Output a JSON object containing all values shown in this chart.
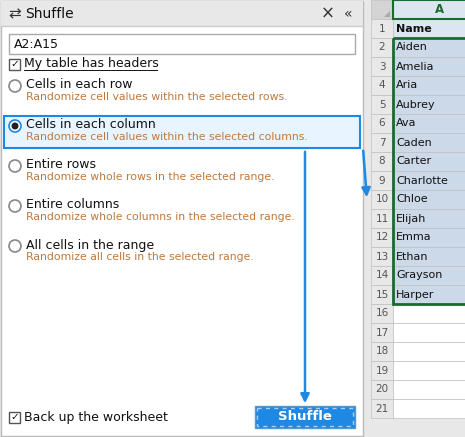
{
  "fig_width": 4.65,
  "fig_height": 4.37,
  "dpi": 100,
  "bg_color": "#e8e8e8",
  "panel_bg": "#ffffff",
  "title": "Shuffle",
  "range_text": "A2:A15",
  "checkbox1_text": "My table has headers",
  "radio_options": [
    {
      "label": "Cells in each row",
      "sublabel": "Randomize cell values within the selected rows.",
      "selected": false
    },
    {
      "label": "Cells in each column",
      "sublabel": "Randomize cell values within the selected columns.",
      "selected": true
    },
    {
      "label": "Entire rows",
      "sublabel": "Randomize whole rows in the selected range.",
      "selected": false
    },
    {
      "label": "Entire columns",
      "sublabel": "Randomize whole columns in the selected range.",
      "selected": false
    },
    {
      "label": "All cells in the range",
      "sublabel": "Randomize all cells in the selected range.",
      "selected": false
    }
  ],
  "checkbox2_text": "Back up the worksheet",
  "shuffle_btn_text": "Shuffle",
  "excel_col_header": "A",
  "excel_rows": [
    {
      "num": 1,
      "name": "Name",
      "header": true
    },
    {
      "num": 2,
      "name": "Aiden",
      "header": false
    },
    {
      "num": 3,
      "name": "Amelia",
      "header": false
    },
    {
      "num": 4,
      "name": "Aria",
      "header": false
    },
    {
      "num": 5,
      "name": "Aubrey",
      "header": false
    },
    {
      "num": 6,
      "name": "Ava",
      "header": false
    },
    {
      "num": 7,
      "name": "Caden",
      "header": false
    },
    {
      "num": 8,
      "name": "Carter",
      "header": false
    },
    {
      "num": 9,
      "name": "Charlotte",
      "header": false
    },
    {
      "num": 10,
      "name": "Chloe",
      "header": false
    },
    {
      "num": 11,
      "name": "Elijah",
      "header": false
    },
    {
      "num": 12,
      "name": "Emma",
      "header": false
    },
    {
      "num": 13,
      "name": "Ethan",
      "header": false
    },
    {
      "num": 14,
      "name": "Grayson",
      "header": false
    },
    {
      "num": 15,
      "name": "Harper",
      "header": false
    },
    {
      "num": 16,
      "name": "",
      "header": false
    },
    {
      "num": 17,
      "name": "",
      "header": false
    },
    {
      "num": 18,
      "name": "",
      "header": false
    },
    {
      "num": 19,
      "name": "",
      "header": false
    },
    {
      "num": 20,
      "name": "",
      "header": false
    },
    {
      "num": 21,
      "name": "",
      "header": false
    }
  ],
  "arrow_color": "#1e88e5",
  "selected_box_color": "#1e88e5",
  "sublabel_color": "#c0783a",
  "text_color": "#222222",
  "excel_border_color": "#c0c0c0",
  "excel_selected_border": "#1a6b2e",
  "excel_selected_bg": "#ccd9e8",
  "excel_header_row_bg": "#dce6f1"
}
